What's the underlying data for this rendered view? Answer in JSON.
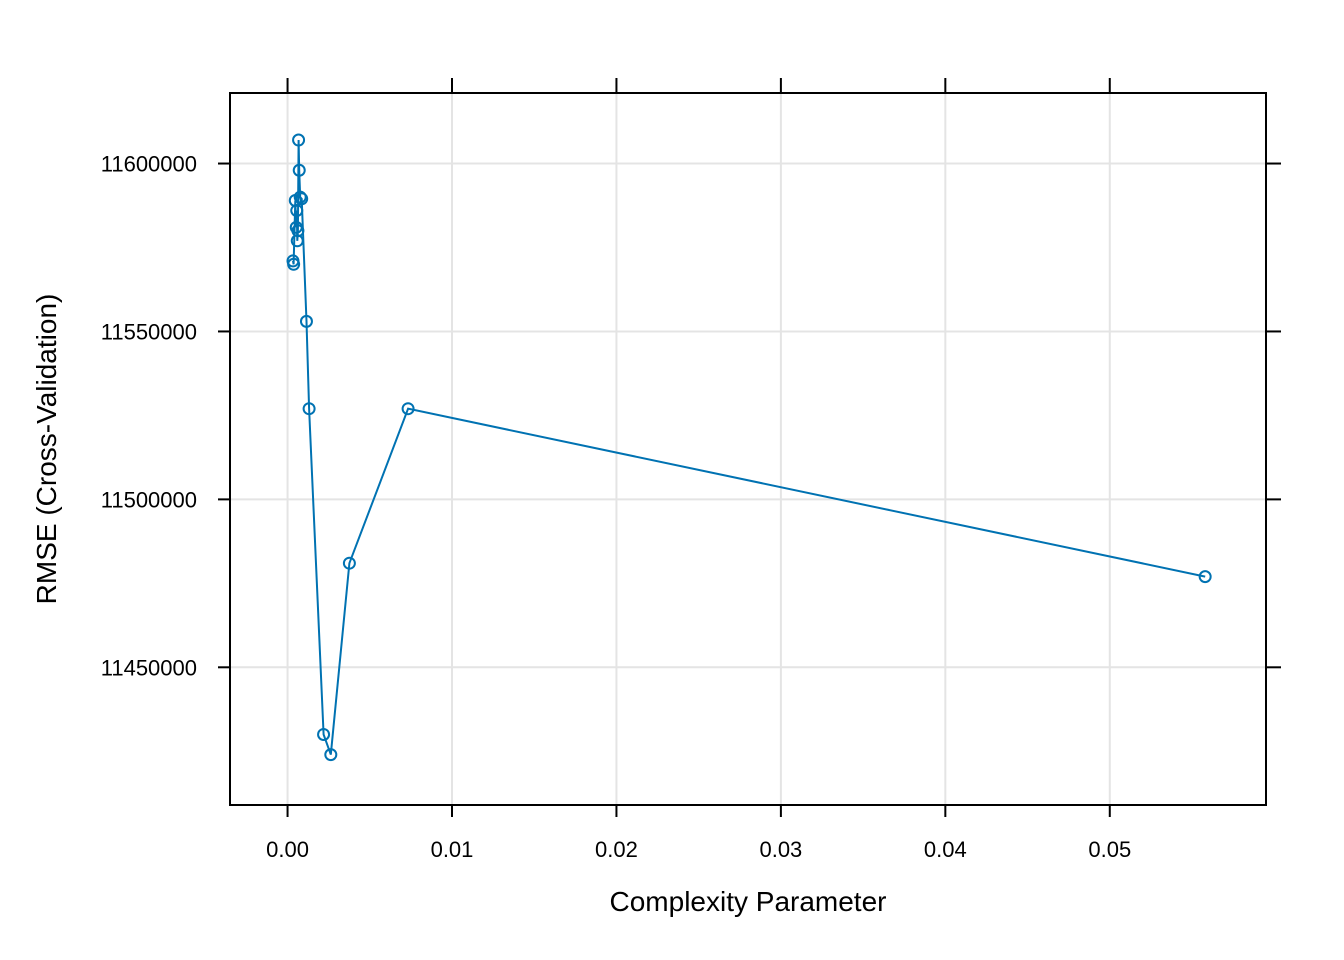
{
  "chart_data": {
    "type": "line",
    "xlabel": "Complexity Parameter",
    "ylabel": "RMSE (Cross-Validation)",
    "xlim": [
      -0.0035,
      0.0595
    ],
    "ylim": [
      11409000,
      11621000
    ],
    "xticks": [
      0.0,
      0.01,
      0.02,
      0.03,
      0.04,
      0.05
    ],
    "xtick_labels": [
      "0.00",
      "0.01",
      "0.02",
      "0.03",
      "0.04",
      "0.05"
    ],
    "yticks": [
      11450000,
      11500000,
      11550000,
      11600000
    ],
    "ytick_labels": [
      "11450000",
      "11500000",
      "11550000",
      "11600000"
    ],
    "grid": true,
    "series_color": "#0072b2",
    "series": [
      {
        "x": [
          0.00033,
          0.00037,
          0.00047,
          0.00053,
          0.00056,
          0.00059,
          0.00063,
          0.00067,
          0.00071,
          0.00077,
          0.00086,
          0.00115,
          0.00131,
          0.00219,
          0.00263,
          0.00376,
          0.00733,
          0.0558
        ],
        "y": [
          11571000,
          11570000,
          11589000,
          11581000,
          11586000,
          11577000,
          11580000,
          11607000,
          11598000,
          11590000,
          11589500,
          11553000,
          11527000,
          11430000,
          11424000,
          11481000,
          11527000,
          11477000
        ]
      }
    ]
  }
}
